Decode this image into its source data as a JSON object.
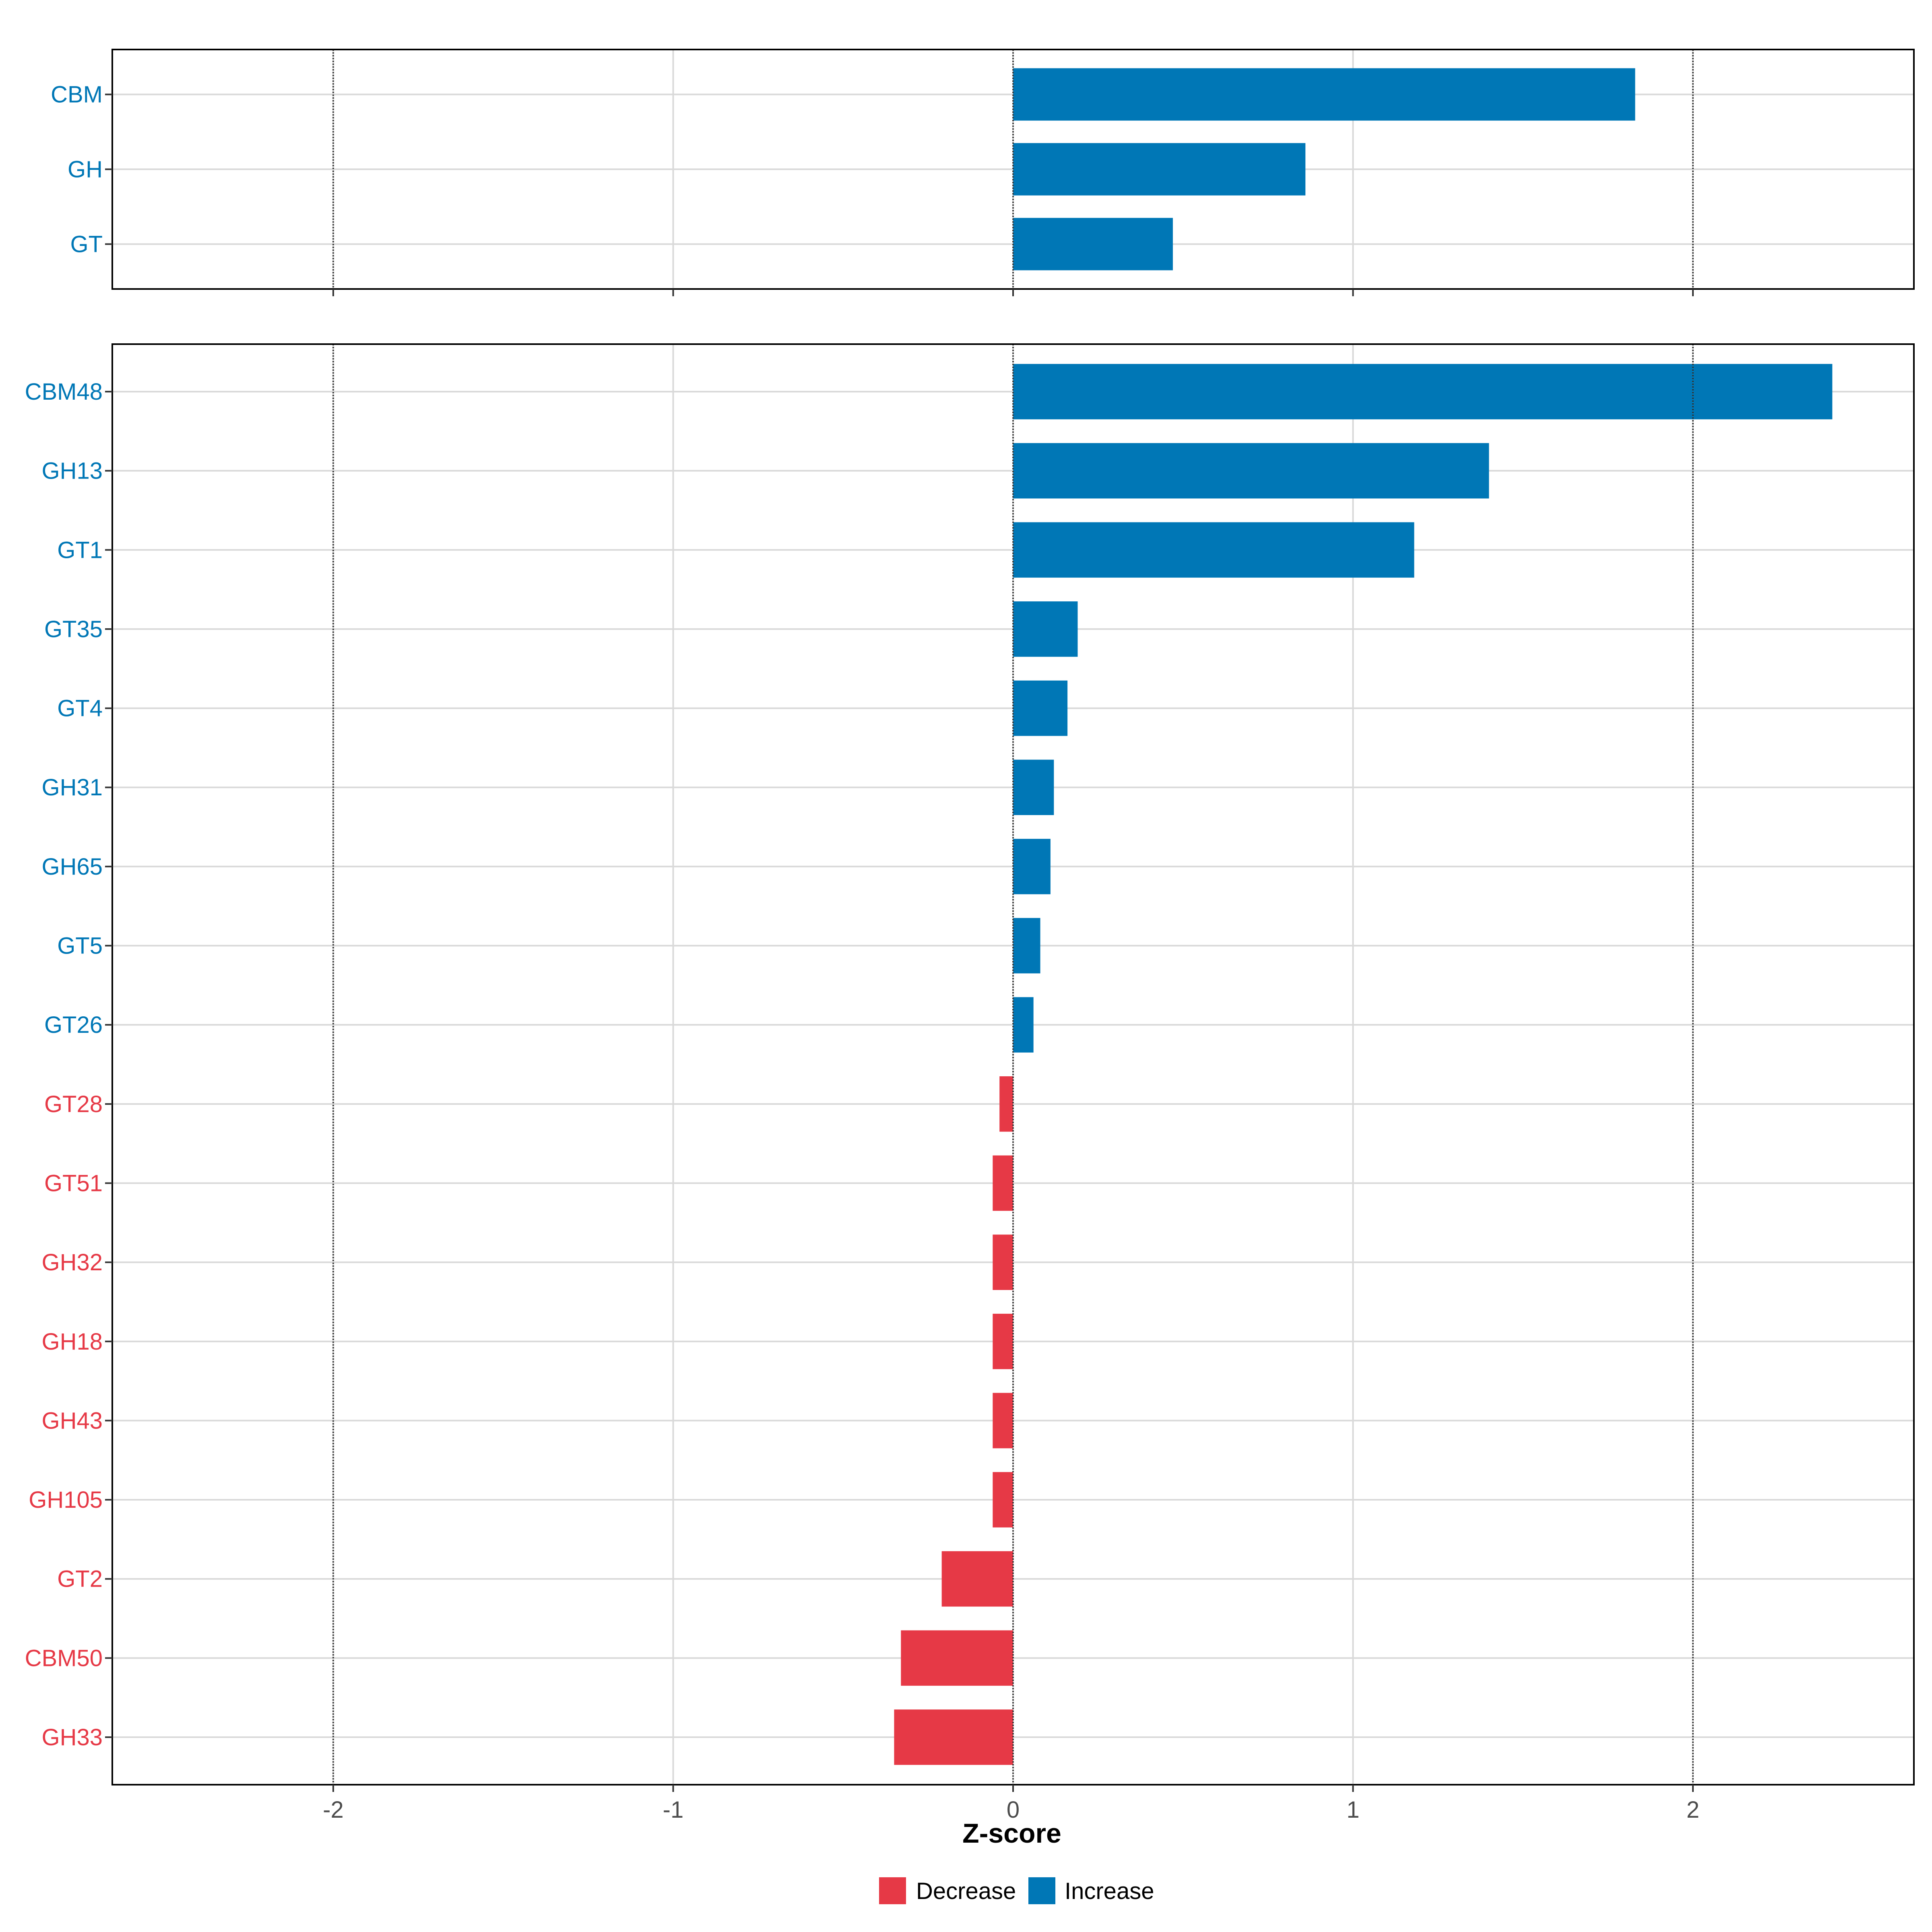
{
  "colors": {
    "decrease": "#E63946",
    "increase": "#0077B6",
    "grid": "#D9D9D9",
    "panel_border": "#000000",
    "reference_line": "#333333"
  },
  "chart_data": [
    {
      "type": "bar",
      "orientation": "horizontal",
      "panel": "top",
      "categories": [
        "CBM",
        "GH",
        "GT"
      ],
      "values": [
        1.83,
        0.86,
        0.47
      ],
      "xlim": [
        -2.65,
        2.65
      ],
      "grid": true,
      "reference_lines": [
        -2,
        0,
        2
      ]
    },
    {
      "type": "bar",
      "orientation": "horizontal",
      "panel": "bottom",
      "categories": [
        "CBM48",
        "GH13",
        "GT1",
        "GT35",
        "GT4",
        "GH31",
        "GH65",
        "GT5",
        "GT26",
        "GT28",
        "GT51",
        "GH32",
        "GH18",
        "GH43",
        "GH105",
        "GT2",
        "CBM50",
        "GH33"
      ],
      "values": [
        2.41,
        1.4,
        1.18,
        0.19,
        0.16,
        0.12,
        0.11,
        0.08,
        0.06,
        -0.04,
        -0.06,
        -0.06,
        -0.06,
        -0.06,
        -0.06,
        -0.21,
        -0.33,
        -0.35
      ],
      "xlim": [
        -2.65,
        2.65
      ],
      "xticks": [
        "-2",
        "-1",
        "0",
        "1",
        "2"
      ],
      "xtick_values": [
        -2,
        -1,
        0,
        1,
        2
      ],
      "xlabel": "Z-score",
      "grid": true,
      "reference_lines": [
        -2,
        0,
        2
      ]
    }
  ],
  "legend": {
    "placement": "bottom",
    "items": [
      {
        "label": "Decrease",
        "key": "decrease"
      },
      {
        "label": "Increase",
        "key": "increase"
      }
    ]
  }
}
